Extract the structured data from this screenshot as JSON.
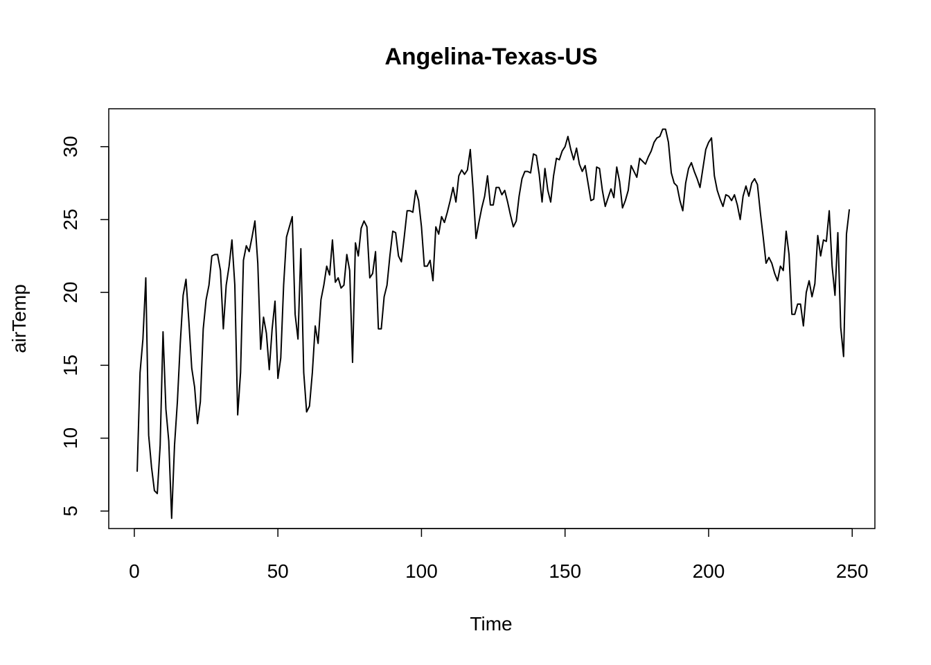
{
  "chart_data": {
    "type": "line",
    "title": "Angelina-Texas-US",
    "xlabel": "Time",
    "ylabel": "airTemp",
    "xlim": [
      -8.9,
      257.9
    ],
    "ylim": [
      3.8,
      32.6
    ],
    "x_ticks": [
      0,
      50,
      100,
      150,
      200,
      250
    ],
    "y_ticks": [
      5,
      10,
      15,
      20,
      25,
      30
    ],
    "grid": false,
    "legend": "none",
    "line_color": "#000000",
    "x_start": 1,
    "series": [
      {
        "values": [
          7.7,
          14.5,
          16.8,
          21.0,
          10.2,
          8.0,
          6.4,
          6.2,
          9.5,
          17.3,
          12.0,
          9.8,
          4.5,
          9.5,
          12.5,
          16.5,
          19.8,
          20.9,
          18.0,
          14.8,
          13.5,
          11.0,
          12.5,
          17.5,
          19.5,
          20.5,
          22.5,
          22.6,
          22.6,
          21.5,
          17.5,
          20.5,
          21.8,
          23.6,
          20.5,
          11.6,
          14.5,
          22.2,
          23.2,
          22.8,
          23.8,
          24.9,
          22.0,
          16.1,
          18.3,
          17.2,
          14.7,
          17.5,
          19.4,
          14.1,
          15.5,
          20.5,
          23.8,
          24.5,
          25.2,
          18.5,
          16.8,
          23.0,
          14.5,
          11.8,
          12.2,
          14.5,
          17.7,
          16.5,
          19.5,
          20.5,
          21.8,
          21.2,
          23.6,
          20.7,
          21.0,
          20.3,
          20.5,
          22.6,
          21.5,
          15.2,
          23.4,
          22.5,
          24.4,
          24.9,
          24.5,
          21.0,
          21.3,
          22.8,
          17.5,
          17.5,
          19.7,
          20.5,
          22.5,
          24.2,
          24.1,
          22.5,
          22.1,
          23.8,
          25.6,
          25.6,
          25.5,
          27.0,
          26.3,
          24.5,
          21.8,
          21.8,
          22.2,
          20.8,
          24.5,
          24.0,
          25.2,
          24.8,
          25.5,
          26.3,
          27.2,
          26.2,
          28.0,
          28.4,
          28.1,
          28.4,
          29.8,
          27.0,
          23.7,
          24.8,
          25.8,
          26.6,
          28.0,
          26.0,
          26.0,
          27.2,
          27.2,
          26.7,
          27.0,
          26.2,
          25.3,
          24.5,
          24.9,
          26.6,
          27.8,
          28.3,
          28.3,
          28.2,
          29.5,
          29.4,
          28.1,
          26.2,
          28.5,
          27.0,
          26.2,
          28.0,
          29.2,
          29.1,
          29.7,
          30.0,
          30.7,
          29.8,
          29.1,
          29.9,
          28.8,
          28.3,
          28.7,
          27.5,
          26.3,
          26.4,
          28.6,
          28.5,
          27.0,
          25.9,
          26.5,
          27.1,
          26.5,
          28.6,
          27.6,
          25.8,
          26.3,
          27.0,
          28.7,
          28.3,
          27.9,
          29.2,
          29.0,
          28.8,
          29.3,
          29.7,
          30.3,
          30.6,
          30.7,
          31.2,
          31.2,
          30.3,
          28.2,
          27.5,
          27.3,
          26.3,
          25.6,
          27.5,
          28.5,
          28.9,
          28.3,
          27.8,
          27.2,
          28.5,
          29.8,
          30.3,
          30.6,
          28.0,
          27.0,
          26.4,
          25.9,
          26.7,
          26.6,
          26.3,
          26.7,
          26.0,
          25.0,
          26.6,
          27.3,
          26.6,
          27.5,
          27.8,
          27.4,
          25.5,
          23.8,
          22.0,
          22.4,
          22.0,
          21.3,
          20.8,
          21.8,
          21.5,
          24.2,
          22.6,
          18.5,
          18.5,
          19.2,
          19.2,
          17.7,
          20.0,
          20.8,
          19.7,
          20.6,
          23.9,
          22.5,
          23.6,
          23.5,
          25.6,
          21.8,
          19.8,
          24.1,
          17.6,
          15.6,
          24.0,
          25.7
        ]
      }
    ]
  }
}
